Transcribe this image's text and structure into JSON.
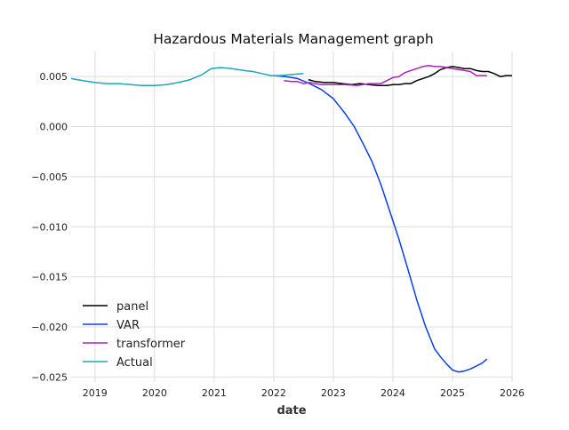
{
  "chart_data": {
    "type": "line",
    "title": "Hazardous Materials Management graph",
    "xlabel": "date",
    "ylabel": "",
    "xlim": [
      2018.6,
      2026.0
    ],
    "ylim": [
      -0.0255,
      0.0075
    ],
    "x_ticks": [
      2019,
      2020,
      2021,
      2022,
      2023,
      2024,
      2025,
      2026
    ],
    "x_tick_labels": [
      "2019",
      "2020",
      "2021",
      "2022",
      "2023",
      "2024",
      "2025",
      "2026"
    ],
    "y_ticks": [
      0.005,
      0.0,
      -0.005,
      -0.01,
      -0.015,
      -0.02,
      -0.025
    ],
    "y_tick_labels": [
      "0.005",
      "0.000",
      "−0.005",
      "−0.010",
      "−0.015",
      "−0.020",
      "−0.025"
    ],
    "grid": true,
    "legend_position": "bottom-left",
    "colors": {
      "panel": "#000000",
      "VAR": "#0a3ef2",
      "transformer": "#b020c0",
      "Actual": "#1ba9b8",
      "grid": "#dddddd",
      "tick_text": "#222222"
    },
    "series": [
      {
        "name": "panel",
        "color": "#000000",
        "x": [
          2022.58,
          2022.7,
          2022.85,
          2023.0,
          2023.15,
          2023.3,
          2023.45,
          2023.6,
          2023.75,
          2023.9,
          2024.0,
          2024.1,
          2024.2,
          2024.3,
          2024.4,
          2024.5,
          2024.6,
          2024.7,
          2024.8,
          2024.9,
          2025.0,
          2025.1,
          2025.2,
          2025.3,
          2025.4,
          2025.5,
          2025.6,
          2025.7,
          2025.8,
          2025.9,
          2026.0
        ],
        "values": [
          0.0047,
          0.0045,
          0.0044,
          0.0044,
          0.0043,
          0.0042,
          0.0043,
          0.0042,
          0.0041,
          0.0041,
          0.0042,
          0.0042,
          0.0043,
          0.0043,
          0.0046,
          0.0048,
          0.005,
          0.0053,
          0.0057,
          0.0059,
          0.006,
          0.0059,
          0.0058,
          0.0058,
          0.0056,
          0.0055,
          0.0055,
          0.0053,
          0.005,
          0.0051,
          0.0051
        ]
      },
      {
        "name": "VAR",
        "color": "#0a3ef2",
        "x": [
          2022.0,
          2022.2,
          2022.4,
          2022.6,
          2022.8,
          2023.0,
          2023.2,
          2023.35,
          2023.5,
          2023.65,
          2023.8,
          2023.95,
          2024.1,
          2024.25,
          2024.4,
          2024.55,
          2024.7,
          2024.8,
          2024.9,
          2025.0,
          2025.1,
          2025.2,
          2025.3,
          2025.4,
          2025.5,
          2025.58
        ],
        "values": [
          0.0051,
          0.005,
          0.0048,
          0.0043,
          0.0037,
          0.0028,
          0.0013,
          0.0,
          -0.0017,
          -0.0035,
          -0.0058,
          -0.0085,
          -0.0112,
          -0.0142,
          -0.0173,
          -0.02,
          -0.0222,
          -0.023,
          -0.0237,
          -0.0243,
          -0.0245,
          -0.0244,
          -0.0242,
          -0.0239,
          -0.0236,
          -0.0232
        ]
      },
      {
        "name": "transformer",
        "color": "#b020c0",
        "x": [
          2022.17,
          2022.3,
          2022.4,
          2022.5,
          2022.6,
          2022.7,
          2022.8,
          2022.9,
          2023.0,
          2023.2,
          2023.4,
          2023.6,
          2023.8,
          2023.9,
          2024.0,
          2024.1,
          2024.2,
          2024.35,
          2024.5,
          2024.6,
          2024.7,
          2024.8,
          2024.9,
          2025.0,
          2025.1,
          2025.2,
          2025.3,
          2025.4,
          2025.5,
          2025.58
        ],
        "values": [
          0.0046,
          0.0045,
          0.0045,
          0.0043,
          0.0044,
          0.0043,
          0.0042,
          0.0042,
          0.0042,
          0.0042,
          0.0041,
          0.0043,
          0.0043,
          0.0046,
          0.0049,
          0.005,
          0.0054,
          0.0057,
          0.006,
          0.0061,
          0.006,
          0.006,
          0.0059,
          0.0058,
          0.0057,
          0.0056,
          0.0055,
          0.0051,
          0.0051,
          0.0051
        ]
      },
      {
        "name": "Actual",
        "color": "#1ba9b8",
        "x": [
          2018.6,
          2018.8,
          2019.0,
          2019.2,
          2019.4,
          2019.6,
          2019.8,
          2020.0,
          2020.2,
          2020.4,
          2020.6,
          2020.8,
          2020.95,
          2021.1,
          2021.3,
          2021.5,
          2021.65,
          2021.8,
          2021.95,
          2022.1,
          2022.3,
          2022.5
        ],
        "values": [
          0.0048,
          0.0046,
          0.0044,
          0.0043,
          0.0043,
          0.0042,
          0.0041,
          0.0041,
          0.0042,
          0.0044,
          0.0047,
          0.0052,
          0.0058,
          0.0059,
          0.0058,
          0.0056,
          0.0055,
          0.0053,
          0.0051,
          0.0051,
          0.0052,
          0.0053
        ]
      }
    ]
  }
}
